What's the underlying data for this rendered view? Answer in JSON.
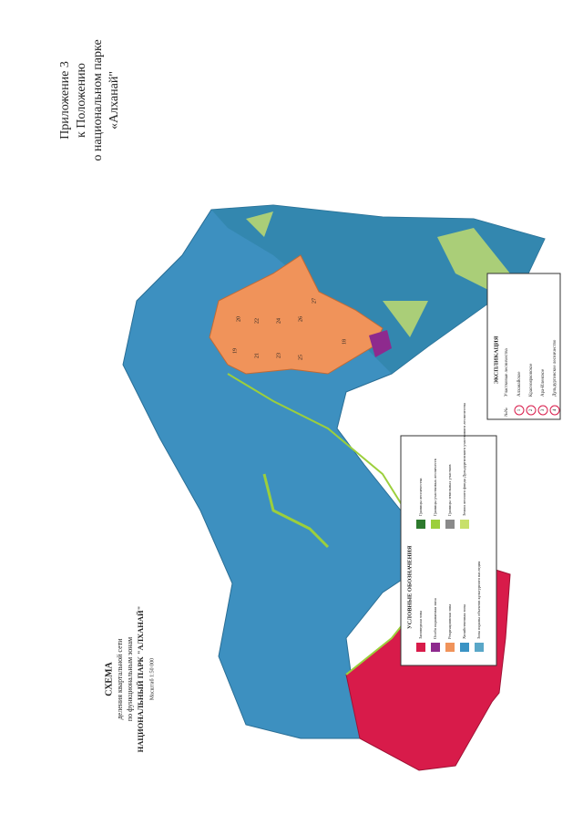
{
  "header": {
    "lines": [
      "Приложение 3",
      "к Положению",
      "о национальном парке",
      "«Алханай\""
    ]
  },
  "title": {
    "lines": [
      "СХЕМА",
      "деления квартальной сети",
      "по функциональным зонам",
      "НАЦИОНАЛЬНЫЙ ПАРК \"АЛХАНАЙ\"",
      "Масштаб 1:50 000"
    ]
  },
  "legend": {
    "title": "УСЛОВНЫЕ ОБОЗНАЧЕНИЯ",
    "items": [
      {
        "label": "Заповедная зона",
        "color": "#d81b4a"
      },
      {
        "label": "Особо охраняемая зона",
        "color": "#8e2a8e"
      },
      {
        "label": "Рекреационная зона",
        "color": "#f0935a"
      },
      {
        "label": "Хозяйственная зона",
        "color": "#3a93c4"
      },
      {
        "label": "Зона охраны объектов культурного наследия",
        "color": "#5aa7c8"
      },
      {
        "label": "Границы лесничества",
        "color": "#2d7a2d"
      },
      {
        "label": "Границы участковых лесничеств",
        "color": "#9ccf3c"
      },
      {
        "label": "Границы земельных участков",
        "color": "#8a8a8a"
      },
      {
        "label": "Земли лесного фонда Дульдургинского участкового лесничества",
        "color": "#c8e06a"
      }
    ]
  },
  "explication": {
    "title": "ЭКСПЛИКАЦИЯ",
    "columns": [
      "№№",
      "Участковые лесничества"
    ],
    "rows": [
      {
        "number": "1",
        "name": "Алханайское"
      },
      {
        "number": "2",
        "name": "Красноярковское"
      },
      {
        "number": "3",
        "name": "Ара-Иленское"
      },
      {
        "number": "4",
        "name": "Дульдургинское лесничество"
      }
    ]
  },
  "map_labels": [
    "18",
    "19",
    "20",
    "21",
    "22",
    "23",
    "24",
    "25",
    "26",
    "27"
  ]
}
